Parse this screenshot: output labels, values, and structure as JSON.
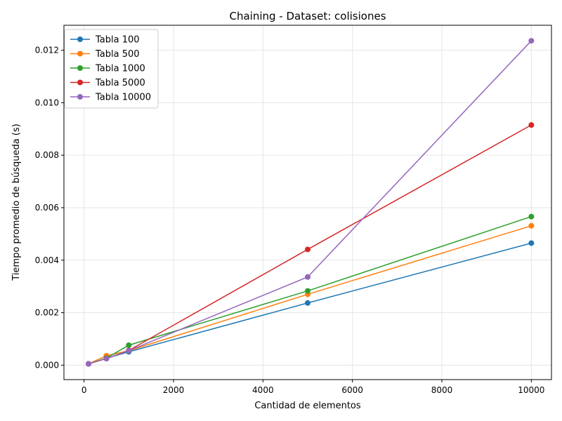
{
  "chart_data": {
    "type": "line",
    "title": "Chaining - Dataset: colisiones",
    "xlabel": "Cantidad de elementos",
    "ylabel": "Tiempo promedio de búsqueda (s)",
    "x": [
      100,
      500,
      1000,
      5000,
      10000
    ],
    "xlim": [
      -450,
      10450
    ],
    "ylim": [
      -0.00055,
      0.01295
    ],
    "xticks": [
      0,
      2000,
      4000,
      6000,
      8000,
      10000
    ],
    "xtick_labels": [
      "0",
      "2000",
      "4000",
      "6000",
      "8000",
      "10000"
    ],
    "yticks": [
      0.0,
      0.002,
      0.004,
      0.006,
      0.008,
      0.01,
      0.012
    ],
    "ytick_labels": [
      "0.000",
      "0.002",
      "0.004",
      "0.006",
      "0.008",
      "0.010",
      "0.012"
    ],
    "grid": true,
    "legend_position": "top-left",
    "series": [
      {
        "name": "Tabla 100",
        "color": "#1f77b4",
        "values": [
          5e-05,
          0.00026,
          0.00051,
          0.00237,
          0.00465
        ]
      },
      {
        "name": "Tabla 500",
        "color": "#ff7f0e",
        "values": [
          5e-05,
          0.00036,
          0.00055,
          0.0027,
          0.00531
        ]
      },
      {
        "name": "Tabla 1000",
        "color": "#2ca02c",
        "values": [
          5e-05,
          0.00027,
          0.00076,
          0.00283,
          0.00566
        ]
      },
      {
        "name": "Tabla 5000",
        "color": "#d62728",
        "values": [
          5e-05,
          0.00025,
          0.00056,
          0.00441,
          0.00915
        ]
      },
      {
        "name": "Tabla 10000",
        "color": "#9467bd",
        "values": [
          5e-05,
          0.00025,
          0.00055,
          0.00336,
          0.01236
        ]
      }
    ]
  }
}
